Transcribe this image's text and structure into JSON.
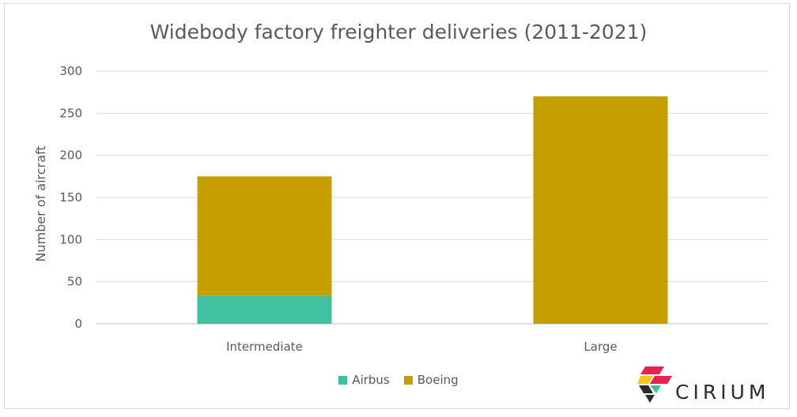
{
  "chart_data": {
    "type": "bar",
    "stacked": true,
    "title": "Widebody factory freighter deliveries (2011-2021)",
    "ylabel": "Number of aircraft",
    "xlabel": "",
    "categories": [
      "Intermediate",
      "Large"
    ],
    "series": [
      {
        "name": "Airbus",
        "color": "#3fc1a1",
        "values": [
          33,
          0
        ]
      },
      {
        "name": "Boeing",
        "color": "#c59f00",
        "values": [
          142,
          270
        ]
      }
    ],
    "ylim": [
      0,
      300
    ],
    "yticks": [
      "0",
      "50",
      "100",
      "150",
      "200",
      "250",
      "300"
    ],
    "grid": true,
    "legend_position": "bottom"
  },
  "logo": {
    "text": "CIRIUM"
  }
}
